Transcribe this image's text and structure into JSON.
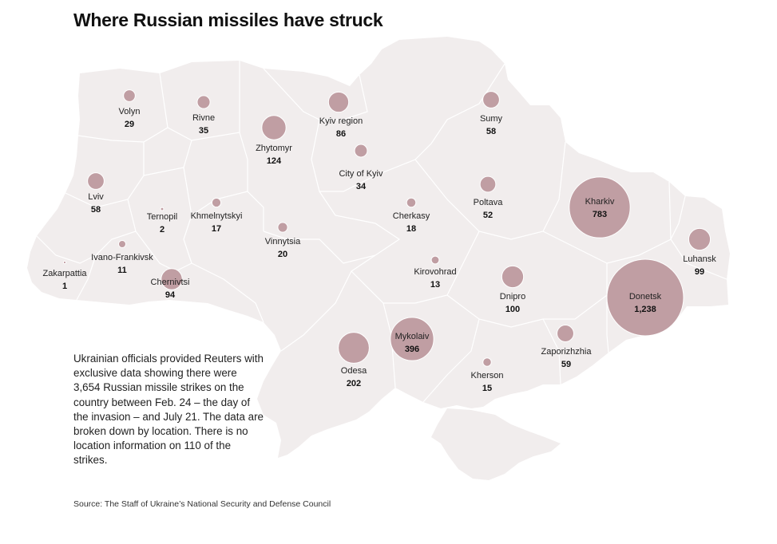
{
  "title": "Where Russian missiles have struck",
  "note": "Ukrainian officials provided Reuters with exclusive data showing there were 3,654 Russian missile strikes on the country between Feb. 24 – the day of the invasion – and July 21. The data are broken down by location. There is no location information on 110 of the strikes.",
  "source": "Source: The Staff of Ukraine’s National Security and Defense Council",
  "colors": {
    "land": "#f1eded",
    "border": "#ffffff",
    "bubble": "#c09ea3",
    "bubble_stroke": "#ffffff"
  },
  "regions": [
    {
      "name": "Volyn",
      "value": "29",
      "count": 29
    },
    {
      "name": "Rivne",
      "value": "35",
      "count": 35
    },
    {
      "name": "Zhytomyr",
      "value": "124",
      "count": 124
    },
    {
      "name": "Kyiv region",
      "value": "86",
      "count": 86
    },
    {
      "name": "Sumy",
      "value": "58",
      "count": 58
    },
    {
      "name": "City of Kyiv",
      "value": "34",
      "count": 34
    },
    {
      "name": "Lviv",
      "value": "58",
      "count": 58
    },
    {
      "name": "Ternopil",
      "value": "2",
      "count": 2
    },
    {
      "name": "Khmelnytskyi",
      "value": "17",
      "count": 17
    },
    {
      "name": "Cherkasy",
      "value": "18",
      "count": 18
    },
    {
      "name": "Poltava",
      "value": "52",
      "count": 52
    },
    {
      "name": "Kharkiv",
      "value": "783",
      "count": 783
    },
    {
      "name": "Luhansk",
      "value": "99",
      "count": 99
    },
    {
      "name": "Vinnytsia",
      "value": "20",
      "count": 20
    },
    {
      "name": "Ivano-Frankivsk",
      "value": "11",
      "count": 11
    },
    {
      "name": "Zakarpattia",
      "value": "1",
      "count": 1
    },
    {
      "name": "Chernivtsi",
      "value": "94",
      "count": 94
    },
    {
      "name": "Kirovohrad",
      "value": "13",
      "count": 13
    },
    {
      "name": "Dnipro",
      "value": "100",
      "count": 100
    },
    {
      "name": "Donetsk",
      "value": "1,238",
      "count": 1238
    },
    {
      "name": "Odesa",
      "value": "202",
      "count": 202
    },
    {
      "name": "Mykolaiv",
      "value": "396",
      "count": 396
    },
    {
      "name": "Kherson",
      "value": "15",
      "count": 15
    },
    {
      "name": "Zaporizhzhia",
      "value": "59",
      "count": 59
    }
  ]
}
